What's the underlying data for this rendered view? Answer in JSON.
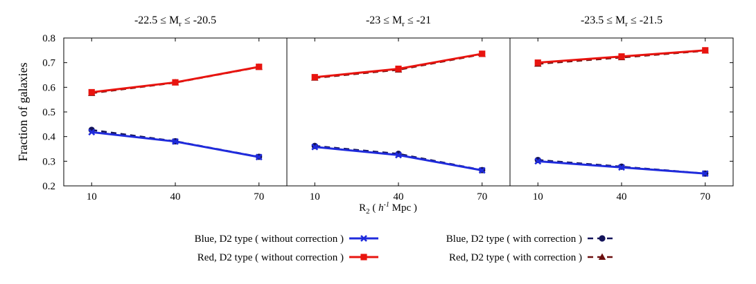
{
  "chart_data": {
    "type": "line",
    "ylabel": "Fraction of galaxies",
    "xlabel": {
      "prefix": "R",
      "sub": "2",
      "open": " ( ",
      "h": "h",
      "sup": "-1",
      "unit": " Mpc )"
    },
    "x": [
      10,
      40,
      70
    ],
    "x_tick_labels": [
      "10",
      "40",
      "70"
    ],
    "ylim": [
      0.2,
      0.8
    ],
    "y_ticks": [
      0.2,
      0.3,
      0.4,
      0.5,
      0.6,
      0.7,
      0.8
    ],
    "y_tick_labels": [
      "0.2",
      "0.3",
      "0.4",
      "0.5",
      "0.6",
      "0.7",
      "0.8"
    ],
    "grid": false,
    "panels": [
      {
        "title": {
          "pre": "-22.5 ≤ M",
          "sub": "r",
          "post": " ≤ -20.5"
        },
        "series": [
          {
            "key": "blue_wo",
            "values": [
              0.418,
              0.38,
              0.317
            ]
          },
          {
            "key": "red_wo",
            "values": [
              0.58,
              0.62,
              0.683
            ]
          },
          {
            "key": "blue_w",
            "values": [
              0.427,
              0.381,
              0.318
            ]
          },
          {
            "key": "red_w",
            "values": [
              0.576,
              0.619,
              0.682
            ]
          }
        ]
      },
      {
        "title": {
          "pre": "-23 ≤ M",
          "sub": "r",
          "post": " ≤ -21"
        },
        "series": [
          {
            "key": "blue_wo",
            "values": [
              0.358,
              0.325,
              0.263
            ]
          },
          {
            "key": "red_wo",
            "values": [
              0.641,
              0.675,
              0.736
            ]
          },
          {
            "key": "blue_w",
            "values": [
              0.362,
              0.33,
              0.264
            ]
          },
          {
            "key": "red_w",
            "values": [
              0.638,
              0.671,
              0.734
            ]
          }
        ]
      },
      {
        "title": {
          "pre": "-23.5 ≤ M",
          "sub": "r",
          "post": " ≤ -21.5"
        },
        "series": [
          {
            "key": "blue_wo",
            "values": [
              0.3,
              0.275,
              0.25
            ]
          },
          {
            "key": "red_wo",
            "values": [
              0.7,
              0.725,
              0.75
            ]
          },
          {
            "key": "blue_w",
            "values": [
              0.305,
              0.278,
              0.25
            ]
          },
          {
            "key": "red_w",
            "values": [
              0.695,
              0.721,
              0.748
            ]
          }
        ]
      }
    ],
    "series_styles": {
      "blue_wo": {
        "name": "Blue, D2 type ( without correction )",
        "color": "#1f2bdc",
        "dash": "solid",
        "marker": "x"
      },
      "red_wo": {
        "name": "Red, D2 type ( without correction )",
        "color": "#e8140f",
        "dash": "solid",
        "marker": "square"
      },
      "blue_w": {
        "name": "Blue, D2 type ( with correction )",
        "color": "#14145a",
        "dash": "dashed",
        "marker": "circle"
      },
      "red_w": {
        "name": "Red, D2 type ( with correction )",
        "color": "#6b0f0f",
        "dash": "dashed",
        "marker": "triangle"
      }
    },
    "legend": {
      "placement": "bottom",
      "entries": [
        {
          "key": "blue_wo",
          "label": "Blue, D2 type ( without correction )"
        },
        {
          "key": "blue_w",
          "label": "Blue, D2 type ( with correction )"
        },
        {
          "key": "red_wo",
          "label": "Red, D2 type ( without correction )"
        },
        {
          "key": "red_w",
          "label": "Red, D2 type ( with correction )"
        }
      ]
    }
  }
}
